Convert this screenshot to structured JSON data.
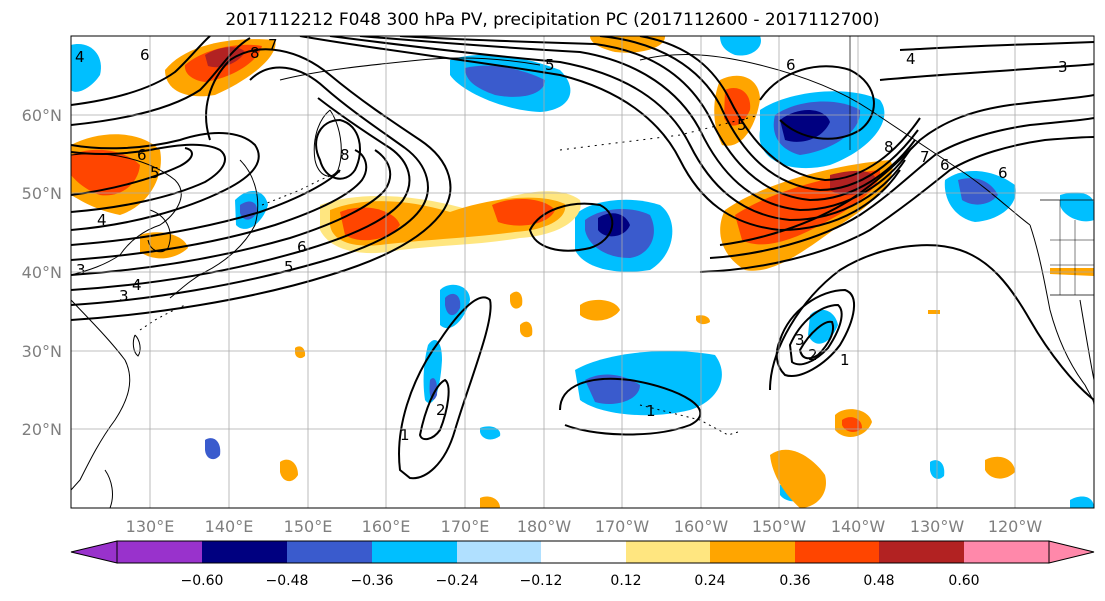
{
  "title": "2017112212 F048 300 hPa PV, precipitation PC (2017112600 - 2017112700)",
  "map": {
    "lon_labels": [
      "130°E",
      "140°E",
      "150°E",
      "160°E",
      "170°E",
      "180°W",
      "170°W",
      "160°W",
      "150°W",
      "140°W",
      "130°W",
      "120°W"
    ],
    "lat_labels": [
      "60°N",
      "50°N",
      "40°N",
      "30°N",
      "20°N"
    ],
    "contour_labels": [
      "6",
      "8",
      "7",
      "6",
      "5",
      "4",
      "3",
      "8",
      "6",
      "5",
      "5",
      "6",
      "4",
      "3",
      "1",
      "2",
      "1",
      "3",
      "2",
      "1",
      "6",
      "8",
      "4",
      "3",
      "4",
      "5",
      "6",
      "7"
    ]
  },
  "colorbar": {
    "colors": [
      "#9932cc",
      "#000080",
      "#3a5bcd",
      "#00bfff",
      "#b0e0ff",
      "#ffffff",
      "#ffe680",
      "#ffa500",
      "#ff4500",
      "#b22222",
      "#ff88aa"
    ],
    "ticks": [
      "−0.60",
      "−0.48",
      "−0.36",
      "−0.24",
      "−0.12",
      "0.12",
      "0.24",
      "0.36",
      "0.48",
      "0.60"
    ]
  },
  "colors": {
    "land_outline": "#000000",
    "grid": "#aaaaaa",
    "contour": "#000000"
  }
}
